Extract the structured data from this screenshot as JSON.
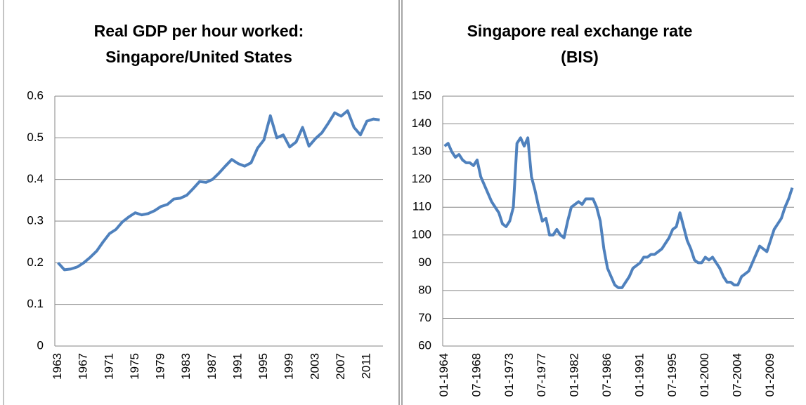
{
  "chart_data": [
    {
      "type": "line",
      "title": "Real GDP per hour worked: Singapore/United States",
      "categories": [
        "1963",
        null,
        null,
        null,
        "1967",
        null,
        null,
        null,
        "1971",
        null,
        null,
        null,
        "1975",
        null,
        null,
        null,
        "1979",
        null,
        null,
        null,
        "1983",
        null,
        null,
        null,
        "1987",
        null,
        null,
        null,
        "1991",
        null,
        null,
        null,
        "1995",
        null,
        null,
        null,
        "1999",
        null,
        null,
        null,
        "2003",
        null,
        null,
        null,
        "2007",
        null,
        null,
        null,
        "2011",
        null,
        null
      ],
      "values": [
        0.2,
        0.183,
        0.185,
        0.19,
        0.2,
        0.213,
        0.228,
        0.25,
        0.27,
        0.28,
        0.298,
        0.31,
        0.32,
        0.315,
        0.318,
        0.325,
        0.335,
        0.34,
        0.353,
        0.355,
        0.362,
        0.378,
        0.395,
        0.393,
        0.4,
        0.415,
        0.432,
        0.448,
        0.438,
        0.432,
        0.44,
        0.475,
        0.495,
        0.553,
        0.5,
        0.507,
        0.478,
        0.49,
        0.525,
        0.48,
        0.498,
        0.512,
        0.535,
        0.56,
        0.552,
        0.565,
        0.525,
        0.507,
        0.54,
        0.545,
        0.543
      ],
      "color": "#4f81bd",
      "ylim": [
        0,
        0.6
      ],
      "yticks": [
        0,
        0.1,
        0.2,
        0.3,
        0.4,
        0.5,
        0.6
      ],
      "grid": true
    },
    {
      "type": "line",
      "title": "Singapore real exchange rate (BIS)",
      "categories": [
        "01-1964",
        null,
        null,
        null,
        null,
        null,
        null,
        null,
        null,
        "07-1968",
        null,
        null,
        null,
        null,
        null,
        null,
        null,
        null,
        "01-1973",
        null,
        null,
        null,
        null,
        null,
        null,
        null,
        null,
        "07-1977",
        null,
        null,
        null,
        null,
        null,
        null,
        null,
        null,
        "01-1982",
        null,
        null,
        null,
        null,
        null,
        null,
        null,
        null,
        "07-1986",
        null,
        null,
        null,
        null,
        null,
        null,
        null,
        null,
        "01-1991",
        null,
        null,
        null,
        null,
        null,
        null,
        null,
        null,
        "07-1995",
        null,
        null,
        null,
        null,
        null,
        null,
        null,
        null,
        "01-2000",
        null,
        null,
        null,
        null,
        null,
        null,
        null,
        null,
        "07-2004",
        null,
        null,
        null,
        null,
        null,
        null,
        null,
        null,
        "01-2009",
        null,
        null,
        null,
        null,
        null,
        null
      ],
      "values": [
        132,
        133,
        130,
        128,
        129,
        127,
        126,
        126,
        125,
        127,
        121,
        118,
        115,
        112,
        110,
        108,
        104,
        103,
        105,
        110,
        133,
        135,
        132,
        135,
        121,
        116,
        110,
        105,
        106,
        100,
        100,
        102,
        100,
        99,
        105,
        110,
        111,
        112,
        111,
        113,
        113,
        113,
        110,
        105,
        95,
        88,
        85,
        82,
        81,
        81,
        83,
        85,
        88,
        89,
        90,
        92,
        92,
        93,
        93,
        94,
        95,
        97,
        99,
        102,
        103,
        108,
        103,
        98,
        95,
        91,
        90,
        90,
        92,
        91,
        92,
        90,
        88,
        85,
        83,
        83,
        82,
        82,
        85,
        86,
        87,
        90,
        93,
        96,
        95,
        94,
        98,
        102,
        104,
        106,
        110,
        113,
        117
      ],
      "color": "#4f81bd",
      "ylim": [
        60,
        150
      ],
      "yticks": [
        60,
        70,
        80,
        90,
        100,
        110,
        120,
        130,
        140,
        150
      ],
      "grid": true
    }
  ]
}
